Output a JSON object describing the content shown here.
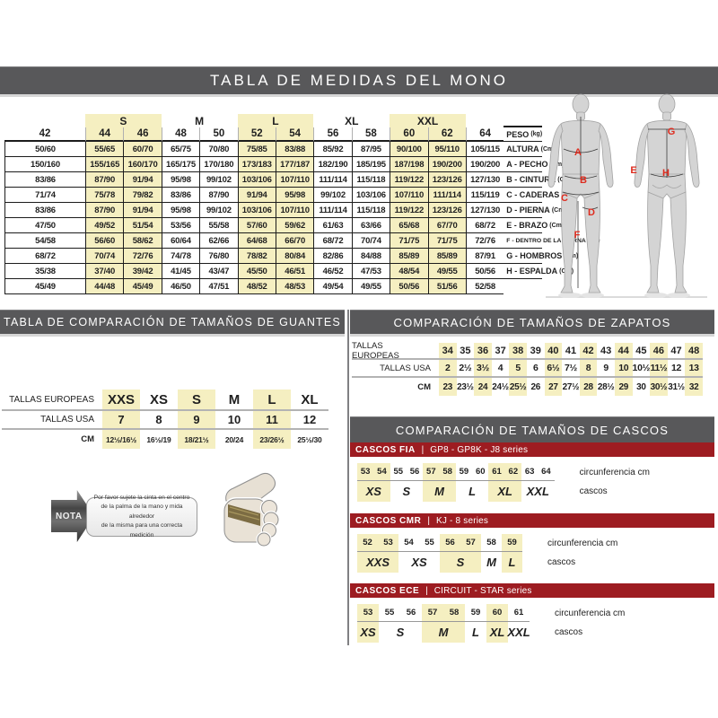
{
  "page": {
    "title": "TABLA DE MEDIDAS DEL MONO"
  },
  "colors": {
    "bar_gray": "#58585a",
    "accent_red": "#9d1c21",
    "highlight_yellow": "#f5efc1"
  },
  "main_table": {
    "groups": [
      {
        "label": "S",
        "highlight": true
      },
      {
        "label": "M",
        "highlight": false
      },
      {
        "label": "L",
        "highlight": true
      },
      {
        "label": "XL",
        "highlight": false
      },
      {
        "label": "XXL",
        "highlight": true
      }
    ],
    "sizes": [
      "42",
      "44",
      "46",
      "48",
      "50",
      "52",
      "54",
      "56",
      "58",
      "60",
      "62",
      "64"
    ],
    "highlight_cols": [
      1,
      2,
      5,
      6,
      9,
      10
    ],
    "rows": [
      {
        "label": "PESO",
        "unit": "(kg)",
        "values": [
          "50/60",
          "55/65",
          "60/70",
          "65/75",
          "70/80",
          "75/85",
          "83/88",
          "85/92",
          "87/95",
          "90/100",
          "95/110",
          "105/115"
        ]
      },
      {
        "label": "ALTURA",
        "unit": "(Cm)",
        "values": [
          "150/160",
          "155/165",
          "160/170",
          "165/175",
          "170/180",
          "173/183",
          "177/187",
          "182/190",
          "185/195",
          "187/198",
          "190/200",
          "190/200"
        ]
      },
      {
        "label": "A - PECHO",
        "unit": "(Cm)",
        "values": [
          "83/86",
          "87/90",
          "91/94",
          "95/98",
          "99/102",
          "103/106",
          "107/110",
          "111/114",
          "115/118",
          "119/122",
          "123/126",
          "127/130"
        ]
      },
      {
        "label": "B - CINTURA",
        "unit": "(Cm)",
        "values": [
          "71/74",
          "75/78",
          "79/82",
          "83/86",
          "87/90",
          "91/94",
          "95/98",
          "99/102",
          "103/106",
          "107/110",
          "111/114",
          "115/119"
        ]
      },
      {
        "label": "C - CADERAS",
        "unit": "(Cm)",
        "values": [
          "83/86",
          "87/90",
          "91/94",
          "95/98",
          "99/102",
          "103/106",
          "107/110",
          "111/114",
          "115/118",
          "119/122",
          "123/126",
          "127/130"
        ]
      },
      {
        "label": "D - PIERNA",
        "unit": "(Cm)",
        "values": [
          "47/50",
          "49/52",
          "51/54",
          "53/56",
          "55/58",
          "57/60",
          "59/62",
          "61/63",
          "63/66",
          "65/68",
          "67/70",
          "68/72"
        ]
      },
      {
        "label": "E - BRAZO",
        "unit": "(Cm)",
        "values": [
          "54/58",
          "56/60",
          "58/62",
          "60/64",
          "62/66",
          "64/68",
          "66/70",
          "68/72",
          "70/74",
          "71/75",
          "71/75",
          "72/76"
        ]
      },
      {
        "label": "F - DENTRO DE LA PIERNA",
        "unit": "(Cm)",
        "values": [
          "68/72",
          "70/74",
          "72/76",
          "74/78",
          "76/80",
          "78/82",
          "80/84",
          "82/86",
          "84/88",
          "85/89",
          "85/89",
          "87/91"
        ]
      },
      {
        "label": "G - HOMBROS",
        "unit": "(Cm)",
        "values": [
          "35/38",
          "37/40",
          "39/42",
          "41/45",
          "43/47",
          "45/50",
          "46/51",
          "46/52",
          "47/53",
          "48/54",
          "49/55",
          "50/56"
        ]
      },
      {
        "label": "H - ESPALDA",
        "unit": "(Cm)",
        "values": [
          "45/49",
          "44/48",
          "45/49",
          "46/50",
          "47/51",
          "48/52",
          "48/53",
          "49/54",
          "49/55",
          "50/56",
          "51/56",
          "52/58"
        ]
      }
    ]
  },
  "figures": {
    "front": [
      "A",
      "B",
      "C",
      "D",
      "F"
    ],
    "back": [
      "G",
      "E",
      "H"
    ]
  },
  "gloves": {
    "title": "TABLA DE COMPARACIÓN DE TAMAÑOS DE GUANTES",
    "highlight_cols": [
      0,
      2,
      4
    ],
    "rows": [
      {
        "label": "TALLAS EUROPEAS",
        "values": [
          "XXS",
          "XS",
          "S",
          "M",
          "L",
          "XL"
        ]
      },
      {
        "label": "TALLAS USA",
        "values": [
          "7",
          "8",
          "9",
          "10",
          "11",
          "12"
        ]
      },
      {
        "label": "CM",
        "values": [
          "12½/16½",
          "16½/19",
          "18/21½",
          "20/24",
          "23/26½",
          "25½/30"
        ]
      }
    ]
  },
  "note": {
    "label": "NOTA",
    "lines": [
      "Por favor sujete la cinta en el centro",
      "de la palma de la mano y mida alrededor",
      "de la misma para una correcta medición"
    ]
  },
  "shoes": {
    "title": "COMPARACIÓN DE TAMAÑOS DE ZAPATOS",
    "highlight_cols": [
      0,
      2,
      4,
      6,
      8,
      10,
      12,
      14
    ],
    "rows": [
      {
        "label": "TALLAS EUROPEAS",
        "values": [
          "34",
          "35",
          "36",
          "37",
          "38",
          "39",
          "40",
          "41",
          "42",
          "43",
          "44",
          "45",
          "46",
          "47",
          "48"
        ]
      },
      {
        "label": "TALLAS USA",
        "values": [
          "2",
          "2½",
          "3½",
          "4",
          "5",
          "6",
          "6½",
          "7½",
          "8",
          "9",
          "10",
          "10½",
          "11½",
          "12",
          "13"
        ]
      },
      {
        "label": "CM",
        "values": [
          "23",
          "23½",
          "24",
          "24½",
          "25½",
          "26",
          "27",
          "27½",
          "28",
          "28½",
          "29",
          "30",
          "30½",
          "31½",
          "32"
        ]
      }
    ]
  },
  "helmets": {
    "title": "COMPARACIÓN DE TAMAÑOS DE CASCOS",
    "sep": "|",
    "col_label": "circunferencia cm",
    "size_label": "cascos",
    "sections": [
      {
        "name": "CASCOS FIA",
        "series": "GP8 - GP8K - J8 series",
        "circumferences": [
          "53",
          "54",
          "55",
          "56",
          "57",
          "58",
          "59",
          "60",
          "61",
          "62",
          "63",
          "64"
        ],
        "sizes": [
          {
            "label": "XS",
            "span": 2,
            "highlight": true
          },
          {
            "label": "S",
            "span": 2,
            "highlight": false
          },
          {
            "label": "M",
            "span": 2,
            "highlight": true
          },
          {
            "label": "L",
            "span": 2,
            "highlight": false
          },
          {
            "label": "XL",
            "span": 2,
            "highlight": true
          },
          {
            "label": "XXL",
            "span": 2,
            "highlight": false
          }
        ]
      },
      {
        "name": "CASCOS CMR",
        "series": "KJ - 8 series",
        "circumferences": [
          "52",
          "53",
          "54",
          "55",
          "56",
          "57",
          "58",
          "59"
        ],
        "sizes": [
          {
            "label": "XXS",
            "span": 2,
            "highlight": true
          },
          {
            "label": "XS",
            "span": 2,
            "highlight": false
          },
          {
            "label": "S",
            "span": 2,
            "highlight": true
          },
          {
            "label": "M",
            "span": 1,
            "highlight": false
          },
          {
            "label": "L",
            "span": 1,
            "highlight": true
          }
        ]
      },
      {
        "name": "CASCOS ECE",
        "series": "CIRCUIT - STAR series",
        "circumferences": [
          "53",
          "55",
          "56",
          "57",
          "58",
          "59",
          "60",
          "61"
        ],
        "sizes": [
          {
            "label": "XS",
            "span": 1,
            "highlight": true
          },
          {
            "label": "S",
            "span": 2,
            "highlight": false
          },
          {
            "label": "M",
            "span": 2,
            "highlight": true
          },
          {
            "label": "L",
            "span": 1,
            "highlight": false
          },
          {
            "label": "XL",
            "span": 1,
            "highlight": true
          },
          {
            "label": "XXL",
            "span": 1,
            "highlight": false
          }
        ]
      }
    ]
  }
}
